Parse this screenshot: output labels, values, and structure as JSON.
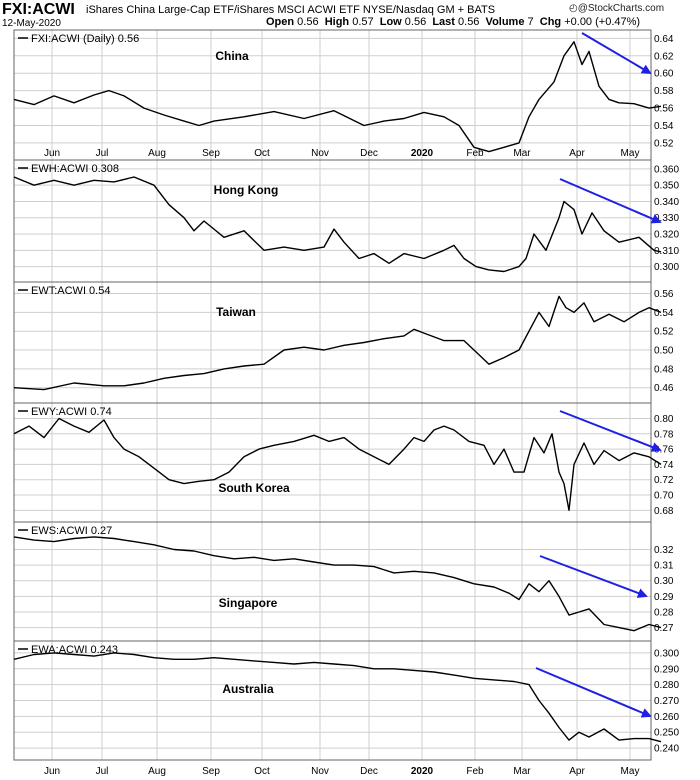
{
  "header": {
    "symbol": "FXI:ACWI",
    "description": "iShares China Large-Cap ETF/iShares MSCI ACWI ETF  NYSE/Nasdaq GM + BATS",
    "date": "12-May-2020",
    "quote": [
      {
        "k": "Open",
        "v": "0.56"
      },
      {
        "k": "High",
        "v": "0.57"
      },
      {
        "k": "Low",
        "v": "0.56"
      },
      {
        "k": "Last",
        "v": "0.56"
      },
      {
        "k": "Volume",
        "v": "7"
      },
      {
        "k": "Chg",
        "v": "+0.00 (+0.47%)"
      }
    ],
    "logo": "@StockCharts.com",
    "logo_icon": "stockcharts-logo-icon"
  },
  "colors": {
    "price_line": "#000000",
    "arrow": "#1f1fe6",
    "grid": "#cfcfcf",
    "border": "#666666"
  },
  "chart_data": {
    "type": "line",
    "x_tick_labels": [
      "Jun",
      "Jul",
      "Aug",
      "Sep",
      "Oct",
      "Nov",
      "Dec",
      "2020",
      "Feb",
      "Mar",
      "Apr",
      "May"
    ],
    "x_tick_bold": "2020",
    "panels": [
      {
        "name": "China",
        "legend": "FXI:ACWI (Daily) 0.56",
        "symbol": "FXI:ACWI",
        "last": 0.56,
        "ylim": [
          0.505,
          0.645
        ],
        "yticks": [
          "0.64",
          "0.62",
          "0.60",
          "0.58",
          "0.56",
          "0.54",
          "0.52"
        ],
        "trend_arrow": "down",
        "points": [
          [
            0,
            0.57
          ],
          [
            20,
            0.564
          ],
          [
            40,
            0.574
          ],
          [
            60,
            0.566
          ],
          [
            80,
            0.575
          ],
          [
            95,
            0.58
          ],
          [
            110,
            0.574
          ],
          [
            130,
            0.56
          ],
          [
            150,
            0.552
          ],
          [
            170,
            0.545
          ],
          [
            185,
            0.54
          ],
          [
            200,
            0.545
          ],
          [
            230,
            0.55
          ],
          [
            260,
            0.556
          ],
          [
            290,
            0.548
          ],
          [
            320,
            0.557
          ],
          [
            350,
            0.54
          ],
          [
            370,
            0.545
          ],
          [
            390,
            0.548
          ],
          [
            410,
            0.555
          ],
          [
            430,
            0.55
          ],
          [
            445,
            0.54
          ],
          [
            460,
            0.515
          ],
          [
            475,
            0.51
          ],
          [
            490,
            0.515
          ],
          [
            505,
            0.52
          ],
          [
            515,
            0.55
          ],
          [
            525,
            0.57
          ],
          [
            540,
            0.59
          ],
          [
            550,
            0.62
          ],
          [
            560,
            0.636
          ],
          [
            568,
            0.61
          ],
          [
            575,
            0.625
          ],
          [
            585,
            0.585
          ],
          [
            595,
            0.57
          ],
          [
            605,
            0.566
          ],
          [
            620,
            0.565
          ],
          [
            635,
            0.56
          ],
          [
            647,
            0.562
          ]
        ]
      },
      {
        "name": "Hong Kong",
        "legend": "EWH:ACWI 0.308",
        "symbol": "EWH:ACWI",
        "last": 0.308,
        "ylim": [
          0.293,
          0.363
        ],
        "yticks": [
          "0.360",
          "0.350",
          "0.340",
          "0.330",
          "0.320",
          "0.310",
          "0.300"
        ],
        "trend_arrow": "down",
        "points": [
          [
            0,
            0.355
          ],
          [
            20,
            0.35
          ],
          [
            40,
            0.353
          ],
          [
            60,
            0.35
          ],
          [
            80,
            0.353
          ],
          [
            100,
            0.352
          ],
          [
            120,
            0.355
          ],
          [
            140,
            0.35
          ],
          [
            155,
            0.338
          ],
          [
            170,
            0.33
          ],
          [
            180,
            0.322
          ],
          [
            190,
            0.328
          ],
          [
            210,
            0.318
          ],
          [
            230,
            0.322
          ],
          [
            250,
            0.31
          ],
          [
            270,
            0.312
          ],
          [
            290,
            0.31
          ],
          [
            310,
            0.312
          ],
          [
            320,
            0.323
          ],
          [
            330,
            0.315
          ],
          [
            345,
            0.305
          ],
          [
            360,
            0.308
          ],
          [
            375,
            0.302
          ],
          [
            390,
            0.308
          ],
          [
            410,
            0.305
          ],
          [
            430,
            0.31
          ],
          [
            440,
            0.313
          ],
          [
            450,
            0.305
          ],
          [
            462,
            0.3
          ],
          [
            475,
            0.298
          ],
          [
            490,
            0.297
          ],
          [
            505,
            0.3
          ],
          [
            512,
            0.305
          ],
          [
            520,
            0.32
          ],
          [
            532,
            0.31
          ],
          [
            545,
            0.33
          ],
          [
            550,
            0.34
          ],
          [
            560,
            0.335
          ],
          [
            568,
            0.32
          ],
          [
            578,
            0.333
          ],
          [
            590,
            0.322
          ],
          [
            605,
            0.315
          ],
          [
            625,
            0.318
          ],
          [
            640,
            0.31
          ],
          [
            647,
            0.309
          ]
        ]
      },
      {
        "name": "Taiwan",
        "legend": "EWT:ACWI 0.54",
        "symbol": "EWT:ACWI",
        "last": 0.54,
        "ylim": [
          0.448,
          0.568
        ],
        "yticks": [
          "0.56",
          "0.54",
          "0.52",
          "0.50",
          "0.48",
          "0.46"
        ],
        "trend_arrow": "none",
        "points": [
          [
            0,
            0.46
          ],
          [
            30,
            0.458
          ],
          [
            60,
            0.465
          ],
          [
            90,
            0.462
          ],
          [
            110,
            0.462
          ],
          [
            130,
            0.465
          ],
          [
            150,
            0.47
          ],
          [
            170,
            0.473
          ],
          [
            190,
            0.475
          ],
          [
            210,
            0.48
          ],
          [
            230,
            0.483
          ],
          [
            250,
            0.485
          ],
          [
            270,
            0.5
          ],
          [
            290,
            0.503
          ],
          [
            310,
            0.5
          ],
          [
            330,
            0.505
          ],
          [
            350,
            0.508
          ],
          [
            370,
            0.512
          ],
          [
            390,
            0.515
          ],
          [
            400,
            0.522
          ],
          [
            410,
            0.518
          ],
          [
            430,
            0.51
          ],
          [
            450,
            0.51
          ],
          [
            465,
            0.495
          ],
          [
            475,
            0.485
          ],
          [
            490,
            0.492
          ],
          [
            505,
            0.5
          ],
          [
            515,
            0.52
          ],
          [
            525,
            0.54
          ],
          [
            535,
            0.525
          ],
          [
            545,
            0.557
          ],
          [
            552,
            0.545
          ],
          [
            560,
            0.54
          ],
          [
            570,
            0.55
          ],
          [
            580,
            0.53
          ],
          [
            595,
            0.538
          ],
          [
            610,
            0.53
          ],
          [
            625,
            0.54
          ],
          [
            635,
            0.545
          ],
          [
            647,
            0.54
          ]
        ]
      },
      {
        "name": "South Korea",
        "legend": "EWY:ACWI 0.74",
        "symbol": "EWY:ACWI",
        "last": 0.74,
        "ylim": [
          0.67,
          0.815
        ],
        "yticks": [
          "0.80",
          "0.78",
          "0.76",
          "0.74",
          "0.72",
          "0.70",
          "0.68"
        ],
        "trend_arrow": "down",
        "points": [
          [
            0,
            0.78
          ],
          [
            15,
            0.79
          ],
          [
            30,
            0.775
          ],
          [
            45,
            0.8
          ],
          [
            60,
            0.79
          ],
          [
            75,
            0.782
          ],
          [
            90,
            0.798
          ],
          [
            100,
            0.775
          ],
          [
            110,
            0.76
          ],
          [
            125,
            0.75
          ],
          [
            140,
            0.735
          ],
          [
            155,
            0.72
          ],
          [
            170,
            0.715
          ],
          [
            185,
            0.718
          ],
          [
            200,
            0.72
          ],
          [
            215,
            0.73
          ],
          [
            230,
            0.75
          ],
          [
            245,
            0.76
          ],
          [
            260,
            0.765
          ],
          [
            280,
            0.77
          ],
          [
            300,
            0.778
          ],
          [
            315,
            0.77
          ],
          [
            330,
            0.775
          ],
          [
            345,
            0.76
          ],
          [
            360,
            0.75
          ],
          [
            375,
            0.74
          ],
          [
            390,
            0.76
          ],
          [
            400,
            0.775
          ],
          [
            410,
            0.77
          ],
          [
            420,
            0.785
          ],
          [
            430,
            0.79
          ],
          [
            440,
            0.785
          ],
          [
            455,
            0.77
          ],
          [
            470,
            0.765
          ],
          [
            480,
            0.74
          ],
          [
            490,
            0.76
          ],
          [
            500,
            0.73
          ],
          [
            510,
            0.73
          ],
          [
            520,
            0.775
          ],
          [
            530,
            0.755
          ],
          [
            538,
            0.78
          ],
          [
            545,
            0.73
          ],
          [
            550,
            0.715
          ],
          [
            555,
            0.68
          ],
          [
            560,
            0.74
          ],
          [
            570,
            0.768
          ],
          [
            580,
            0.74
          ],
          [
            590,
            0.758
          ],
          [
            605,
            0.745
          ],
          [
            620,
            0.755
          ],
          [
            635,
            0.75
          ],
          [
            647,
            0.74
          ]
        ]
      },
      {
        "name": "Singapore",
        "legend": "EWS:ACWI 0.27",
        "symbol": "EWS:ACWI",
        "last": 0.27,
        "ylim": [
          0.264,
          0.335
        ],
        "yticks": [
          "0.32",
          "0.31",
          "0.30",
          "0.29",
          "0.28",
          "0.27"
        ],
        "trend_arrow": "down",
        "points": [
          [
            0,
            0.328
          ],
          [
            20,
            0.326
          ],
          [
            40,
            0.325
          ],
          [
            60,
            0.327
          ],
          [
            80,
            0.328
          ],
          [
            100,
            0.327
          ],
          [
            120,
            0.325
          ],
          [
            140,
            0.323
          ],
          [
            160,
            0.32
          ],
          [
            180,
            0.319
          ],
          [
            200,
            0.316
          ],
          [
            220,
            0.314
          ],
          [
            240,
            0.315
          ],
          [
            260,
            0.313
          ],
          [
            280,
            0.314
          ],
          [
            300,
            0.312
          ],
          [
            320,
            0.31
          ],
          [
            340,
            0.31
          ],
          [
            360,
            0.309
          ],
          [
            380,
            0.305
          ],
          [
            400,
            0.306
          ],
          [
            420,
            0.305
          ],
          [
            440,
            0.302
          ],
          [
            460,
            0.298
          ],
          [
            480,
            0.296
          ],
          [
            495,
            0.292
          ],
          [
            505,
            0.288
          ],
          [
            515,
            0.298
          ],
          [
            525,
            0.293
          ],
          [
            535,
            0.3
          ],
          [
            545,
            0.29
          ],
          [
            555,
            0.278
          ],
          [
            565,
            0.28
          ],
          [
            575,
            0.282
          ],
          [
            590,
            0.272
          ],
          [
            605,
            0.27
          ],
          [
            620,
            0.268
          ],
          [
            635,
            0.272
          ],
          [
            647,
            0.27
          ]
        ]
      },
      {
        "name": "Australia",
        "legend": "EWA:ACWI 0.243",
        "symbol": "EWA:ACWI",
        "last": 0.243,
        "ylim": [
          0.235,
          0.305
        ],
        "yticks": [
          "0.300",
          "0.290",
          "0.280",
          "0.270",
          "0.260",
          "0.250",
          "0.240"
        ],
        "trend_arrow": "down",
        "points": [
          [
            0,
            0.296
          ],
          [
            20,
            0.299
          ],
          [
            40,
            0.3
          ],
          [
            60,
            0.299
          ],
          [
            80,
            0.298
          ],
          [
            100,
            0.3
          ],
          [
            120,
            0.299
          ],
          [
            140,
            0.297
          ],
          [
            160,
            0.296
          ],
          [
            180,
            0.296
          ],
          [
            200,
            0.297
          ],
          [
            220,
            0.296
          ],
          [
            240,
            0.295
          ],
          [
            260,
            0.294
          ],
          [
            280,
            0.293
          ],
          [
            300,
            0.294
          ],
          [
            320,
            0.293
          ],
          [
            340,
            0.292
          ],
          [
            360,
            0.29
          ],
          [
            380,
            0.29
          ],
          [
            400,
            0.289
          ],
          [
            420,
            0.288
          ],
          [
            440,
            0.286
          ],
          [
            460,
            0.284
          ],
          [
            480,
            0.283
          ],
          [
            500,
            0.282
          ],
          [
            515,
            0.28
          ],
          [
            525,
            0.27
          ],
          [
            535,
            0.262
          ],
          [
            545,
            0.253
          ],
          [
            555,
            0.245
          ],
          [
            565,
            0.25
          ],
          [
            575,
            0.247
          ],
          [
            590,
            0.252
          ],
          [
            605,
            0.245
          ],
          [
            620,
            0.246
          ],
          [
            635,
            0.246
          ],
          [
            647,
            0.244
          ]
        ]
      }
    ]
  }
}
